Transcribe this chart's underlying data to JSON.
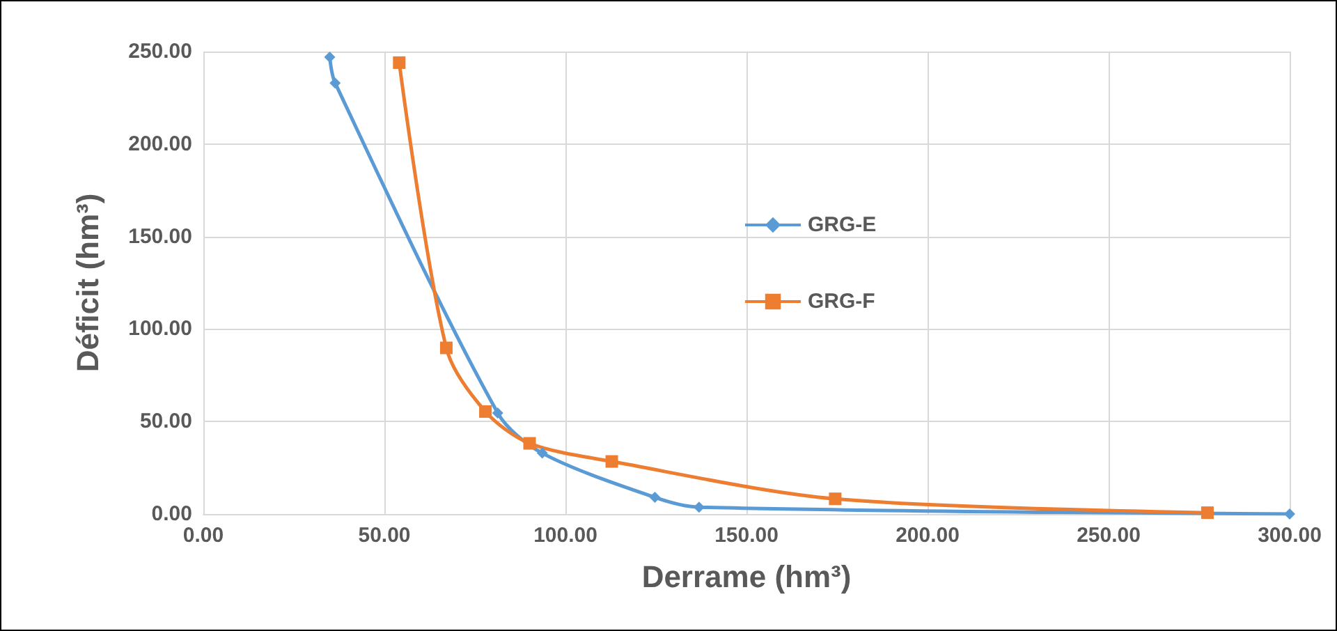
{
  "chart_data": {
    "type": "line",
    "xlabel": "Derrame (hm³)",
    "ylabel": "Déficit (hm³)",
    "grid": true,
    "legend": "center",
    "xlim": [
      0,
      300
    ],
    "ylim": [
      0,
      250
    ],
    "xticks": [
      {
        "value": 0,
        "label": "0.00"
      },
      {
        "value": 50,
        "label": "50.00"
      },
      {
        "value": 100,
        "label": "100.00"
      },
      {
        "value": 150,
        "label": "150.00"
      },
      {
        "value": 200,
        "label": "200.00"
      },
      {
        "value": 250,
        "label": "250.00"
      },
      {
        "value": 300,
        "label": "300.00"
      }
    ],
    "yticks": [
      {
        "value": 0,
        "label": "0.00"
      },
      {
        "value": 50,
        "label": "50.00"
      },
      {
        "value": 100,
        "label": "100.00"
      },
      {
        "value": 150,
        "label": "150.00"
      },
      {
        "value": 200,
        "label": "200.00"
      },
      {
        "value": 250,
        "label": "250.00"
      }
    ],
    "series": [
      {
        "name": "GRG-E",
        "color": "#5b9bd5",
        "marker": "diamond",
        "x": [
          34.9,
          36.4,
          81.3,
          93.6,
          124.7,
          136.9,
          300
        ],
        "values": [
          247,
          233,
          54.6,
          32.9,
          9.0,
          3.7,
          0
        ]
      },
      {
        "name": "GRG-F",
        "color": "#ed7d31",
        "marker": "square",
        "x": [
          54.1,
          67.1,
          77.9,
          90.1,
          112.8,
          174.5,
          277.3
        ],
        "values": [
          244,
          89.8,
          55.4,
          38.2,
          28.4,
          8.2,
          0.7
        ]
      }
    ]
  }
}
